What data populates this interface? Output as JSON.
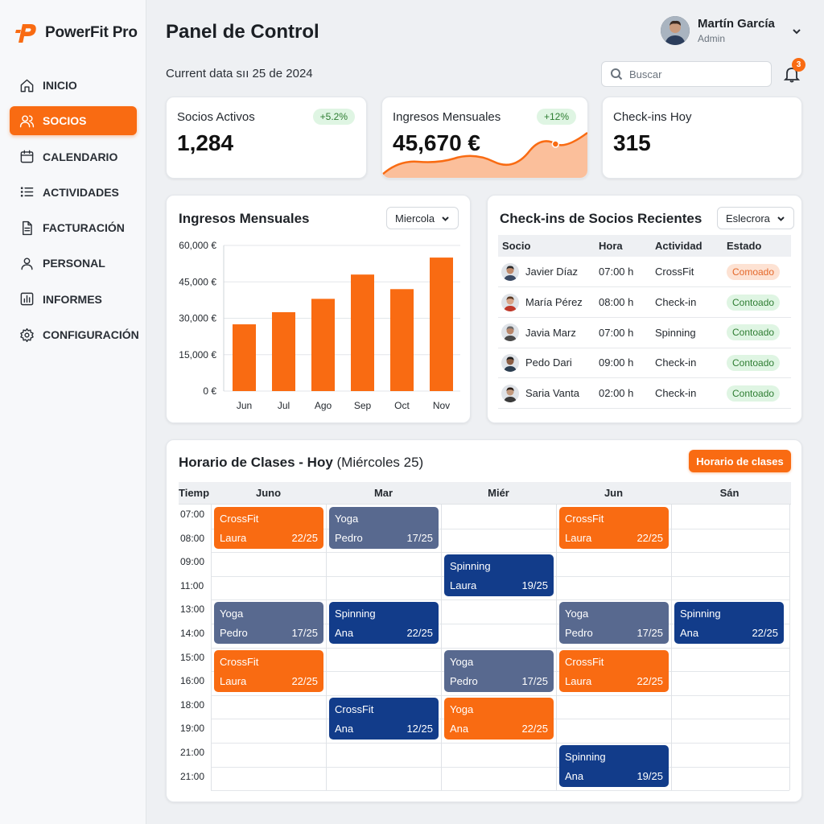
{
  "app": {
    "name": "PowerFit Pro"
  },
  "sidebar": {
    "items": [
      {
        "label": "INICIO",
        "icon": "home-icon"
      },
      {
        "label": "SOCIOS",
        "icon": "users-icon",
        "active": true
      },
      {
        "label": "CALENDARIO",
        "icon": "calendar-icon"
      },
      {
        "label": "ACTIVIDADES",
        "icon": "list-icon"
      },
      {
        "label": "FACTURACIÓN",
        "icon": "document-icon"
      },
      {
        "label": "PERSONAL",
        "icon": "person-icon"
      },
      {
        "label": "INFORMES",
        "icon": "report-icon"
      },
      {
        "label": "CONFIGURACIÓN",
        "icon": "gear-icon"
      }
    ]
  },
  "header": {
    "title": "Panel de Control",
    "current_date": "Current data sıı 25 de 2024",
    "search_placeholder": "Buscar",
    "notifications": "3",
    "user": {
      "name": "Martín García",
      "role": "Admin"
    }
  },
  "kpis": [
    {
      "label": "Socios Activos",
      "value": "1,284",
      "delta": "+5.2%"
    },
    {
      "label": "Ingresos Mensuales",
      "value": "45,670 €",
      "delta": "+12%"
    },
    {
      "label": "Check-ins Hoy",
      "value": "315"
    }
  ],
  "colors": {
    "accent": "#f96b12",
    "slate": "#58698f",
    "navy": "#123c8a",
    "success_bg": "#dff5e3",
    "warning_bg": "#fde2d3"
  },
  "revenue_panel": {
    "title": "Ingresos Mensuales",
    "dropdown": "Miercola"
  },
  "chart_data": {
    "type": "bar",
    "categories": [
      "Jun",
      "Jul",
      "Ago",
      "Sep",
      "Oct",
      "Nov"
    ],
    "values": [
      27500,
      32500,
      38000,
      48000,
      42000,
      55000
    ],
    "ylim": [
      0,
      60000
    ],
    "yticks": [
      "0 €",
      "15,000 €",
      "30,000 €",
      "45,000 €",
      "60,000 €"
    ],
    "grid": true,
    "color": "#f96b12"
  },
  "checkins_panel": {
    "title": "Check-ins de Socios Recientes",
    "dropdown": "Eslecrora",
    "columns": [
      "Socio",
      "Hora",
      "Actividad",
      "Estado"
    ],
    "rows": [
      {
        "name": "Javier Díaz",
        "time": "07:00 h",
        "activity": "CrossFit",
        "status": "Comoado",
        "status_type": "warning"
      },
      {
        "name": "María Pérez",
        "time": "08:00 h",
        "activity": "Check-in",
        "status": "Contoado",
        "status_type": "success"
      },
      {
        "name": "Javia Marz",
        "time": "07:00 h",
        "activity": "Spinning",
        "status": "Contoado",
        "status_type": "success"
      },
      {
        "name": "Pedo Dari",
        "time": "09:00 h",
        "activity": "Check-in",
        "status": "Contoado",
        "status_type": "success"
      },
      {
        "name": "Saria Vanta",
        "time": "02:00 h",
        "activity": "Check-in",
        "status": "Contoado",
        "status_type": "success"
      }
    ]
  },
  "schedule": {
    "title": "Horario de Clases - Hoy",
    "subtitle": " (Miércoles 25)",
    "button": "Horario de clases",
    "time_header": "Tiemp",
    "days": [
      "Juno",
      "Mar",
      "Miér",
      "Jun",
      "Sán"
    ],
    "times": [
      "07:00",
      "08:00",
      "09:00",
      "11:00",
      "13:00",
      "14:00",
      "15:00",
      "16:00",
      "18:00",
      "19:00",
      "21:00",
      "21:00"
    ],
    "events": [
      {
        "day": 0,
        "slot": 0,
        "title": "CrossFit",
        "trainer": "Laura",
        "count": "22/25",
        "color": "orange"
      },
      {
        "day": 1,
        "slot": 0,
        "title": "Yoga",
        "trainer": "Pedro",
        "count": "17/25",
        "color": "slate"
      },
      {
        "day": 3,
        "slot": 0,
        "title": "CrossFit",
        "trainer": "Laura",
        "count": "22/25",
        "color": "orange"
      },
      {
        "day": 2,
        "slot": 1,
        "title": "Spinning",
        "trainer": "Laura",
        "count": "19/25",
        "color": "navy"
      },
      {
        "day": 0,
        "slot": 2,
        "title": "Yoga",
        "trainer": "Pedro",
        "count": "17/25",
        "color": "slate"
      },
      {
        "day": 1,
        "slot": 2,
        "title": "Spinning",
        "trainer": "Ana",
        "count": "22/25",
        "color": "navy"
      },
      {
        "day": 3,
        "slot": 2,
        "title": "Yoga",
        "trainer": "Pedro",
        "count": "17/25",
        "color": "slate"
      },
      {
        "day": 4,
        "slot": 2,
        "title": "Spinning",
        "trainer": "Ana",
        "count": "22/25",
        "color": "navy"
      },
      {
        "day": 0,
        "slot": 3,
        "title": "CrossFit",
        "trainer": "Laura",
        "count": "22/25",
        "color": "orange"
      },
      {
        "day": 2,
        "slot": 3,
        "title": "Yoga",
        "trainer": "Pedro",
        "count": "17/25",
        "color": "slate"
      },
      {
        "day": 3,
        "slot": 3,
        "title": "CrossFit",
        "trainer": "Laura",
        "count": "22/25",
        "color": "orange"
      },
      {
        "day": 1,
        "slot": 4,
        "title": "CrossFit",
        "trainer": "Ana",
        "count": "12/25",
        "color": "navy"
      },
      {
        "day": 2,
        "slot": 4,
        "title": "Yoga",
        "trainer": "Ana",
        "count": "22/25",
        "color": "orange"
      },
      {
        "day": 3,
        "slot": 5,
        "title": "Spinning",
        "trainer": "Ana",
        "count": "19/25",
        "color": "navy"
      }
    ]
  }
}
